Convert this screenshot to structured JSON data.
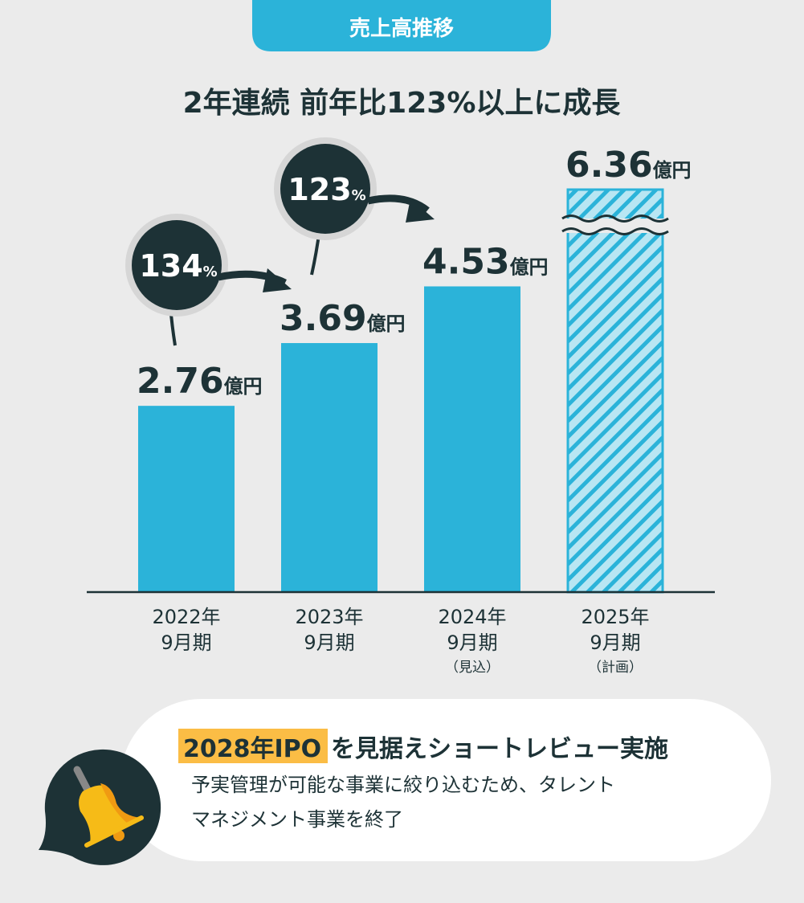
{
  "header": {
    "tag": "売上高推移",
    "headline": "2年連続 前年比123%以上に成長"
  },
  "colors": {
    "bar": "#2bb3d9",
    "bar_plan_fill": "#b8e6f3",
    "dark": "#1d3236",
    "background": "#ebebeb",
    "highlight": "#fbbd45"
  },
  "chart_data": {
    "type": "bar",
    "unit": "億円",
    "categories": [
      {
        "year": "2022年",
        "period": "9月期",
        "note": ""
      },
      {
        "year": "2023年",
        "period": "9月期",
        "note": ""
      },
      {
        "year": "2024年",
        "period": "9月期",
        "note": "（見込）"
      },
      {
        "year": "2025年",
        "period": "9月期",
        "note": "（計画）"
      }
    ],
    "values": [
      2.76,
      3.69,
      4.53,
      6.36
    ],
    "value_labels": [
      "2.76",
      "3.69",
      "4.53",
      "6.36"
    ],
    "bar_styles": [
      "solid",
      "solid",
      "solid",
      "hatched-broken-axis"
    ],
    "growth": [
      {
        "value": "134",
        "unit": "%"
      },
      {
        "value": "123",
        "unit": "%"
      }
    ]
  },
  "callout": {
    "highlight": "2028年IPO",
    "title_rest": "を見据えショートレビュー実施",
    "line1": "予実管理が可能な事業に絞り込むため、タレント",
    "line2": "マネジメント事業を終了",
    "icon": "bell-icon"
  }
}
